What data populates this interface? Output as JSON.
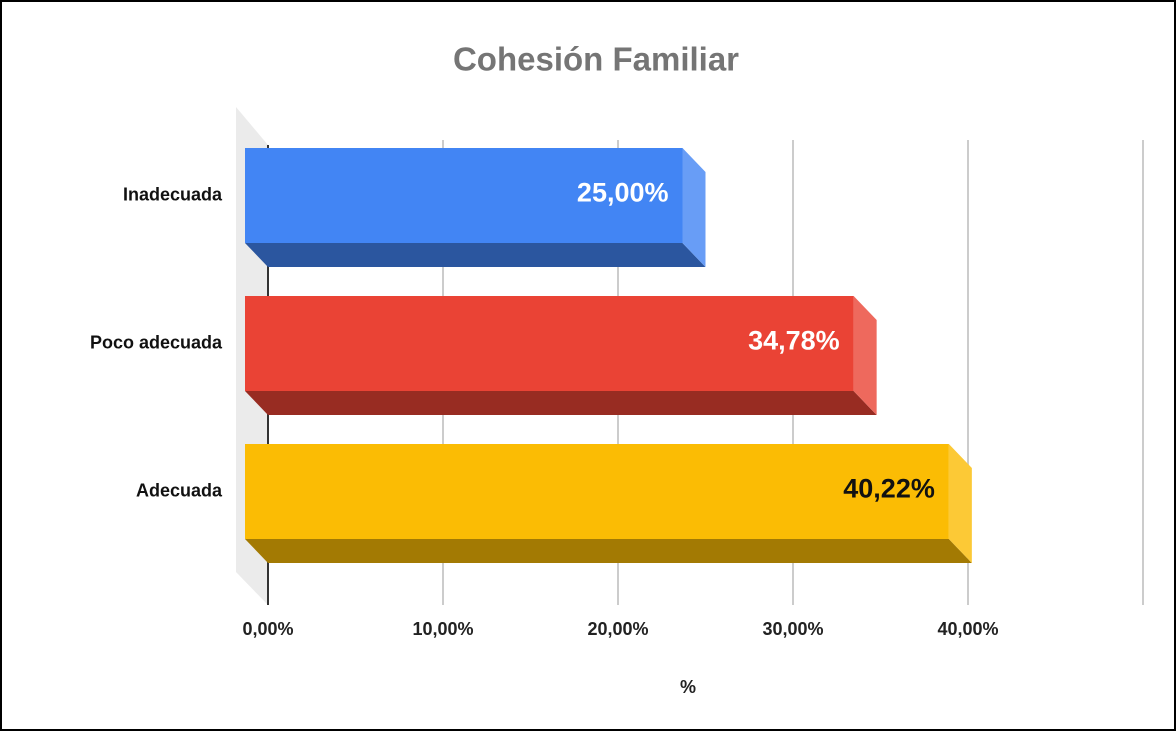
{
  "chart_data": {
    "type": "bar3d",
    "orientation": "horizontal",
    "title": "Cohesión Familiar",
    "categories": [
      "Inadecuada",
      "Poco adecuada",
      "Adecuada"
    ],
    "values": [
      25.0,
      34.78,
      40.22
    ],
    "value_labels": [
      "25,00%",
      "34,78%",
      "40,22%"
    ],
    "colors": [
      "#4285f4",
      "#ea4335",
      "#fbbc04"
    ],
    "xlabel": "%",
    "xlim": [
      0,
      50
    ],
    "xticks": [
      {
        "value": 0,
        "label": "0,00%"
      },
      {
        "value": 10,
        "label": "10,00%"
      },
      {
        "value": 20,
        "label": "20,00%"
      },
      {
        "value": 30,
        "label": "30,00%"
      },
      {
        "value": 40,
        "label": "40,00%"
      }
    ],
    "grid": true
  }
}
